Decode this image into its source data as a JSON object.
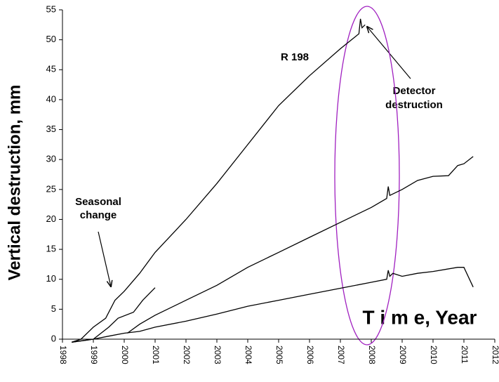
{
  "chart_data": {
    "type": "line",
    "y_label": "Vertical destruction, mm",
    "x_label": "T i m e, Year",
    "annotations": [
      "R 198",
      "Seasonal",
      "change",
      "Detector",
      "destruction"
    ],
    "xlim": [
      1998,
      2012
    ],
    "xticks": [
      1998,
      1999,
      2000,
      2001,
      2002,
      2003,
      2004,
      2005,
      2006,
      2007,
      2008,
      2009,
      2010,
      2011,
      2012
    ],
    "ylim": [
      0,
      55
    ],
    "yticks": [
      0,
      5,
      10,
      15,
      20,
      25,
      30,
      35,
      40,
      45,
      50,
      55
    ],
    "grid": false,
    "series": [
      {
        "color": "#000000",
        "x": [
          1998.3,
          1998.6,
          1999,
          1999.4,
          1999.7,
          2000,
          2000.5,
          2001,
          2002,
          2003,
          2004,
          2005,
          2006,
          2007,
          2007.6,
          2007.65,
          2007.7,
          2007.8
        ],
        "values": [
          -0.5,
          0,
          2,
          3.5,
          6.5,
          8,
          11,
          14.5,
          20,
          26,
          32.5,
          39,
          44,
          48.5,
          51,
          53.5,
          52,
          52.5
        ]
      },
      {
        "color": "#000000",
        "x": [
          1998.3,
          1999,
          1999.5,
          1999.8,
          2000.3,
          2000.6,
          2001
        ],
        "values": [
          -0.5,
          0,
          2,
          3.5,
          4.5,
          6.5,
          8.6
        ]
      },
      {
        "color": "#000000",
        "x": [
          2000.1,
          2000.5,
          2001,
          2002,
          2003,
          2004,
          2005,
          2006,
          2007,
          2008,
          2008.5,
          2008.55,
          2008.6,
          2009,
          2009.5,
          2010,
          2010.5,
          2010.8,
          2011,
          2011.3
        ],
        "values": [
          1,
          2.5,
          4,
          6.5,
          9,
          12,
          14.5,
          17,
          19.5,
          22,
          23.5,
          25.5,
          24,
          25,
          26.5,
          27.2,
          27.3,
          29,
          29.3,
          30.5
        ]
      },
      {
        "color": "#000000",
        "x": [
          1998.3,
          1999,
          1999.5,
          2000,
          2000.5,
          2001,
          2002,
          2003,
          2004,
          2005,
          2006,
          2007,
          2008,
          2008.5,
          2008.55,
          2008.6,
          2008.7,
          2009,
          2009.5,
          2010,
          2010.8,
          2011,
          2011.3
        ],
        "values": [
          -0.5,
          0,
          0.5,
          1,
          1.3,
          2,
          3,
          4.2,
          5.5,
          6.5,
          7.5,
          8.5,
          9.5,
          10,
          11.5,
          10.5,
          11,
          10.5,
          11,
          11.3,
          12,
          12,
          8.7
        ]
      }
    ]
  }
}
